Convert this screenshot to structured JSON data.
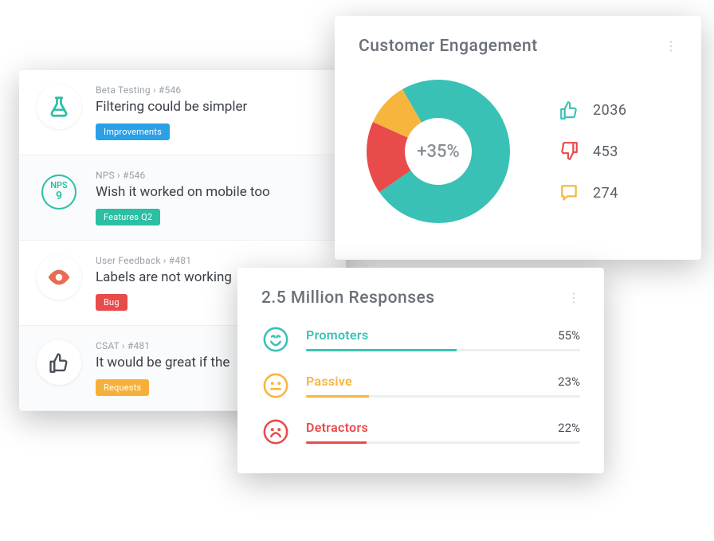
{
  "colors": {
    "teal": "#3ac1b5",
    "red": "#e94b4b",
    "yellow": "#f6b63e",
    "blue": "#2aa0e8",
    "orange": "#f5a623",
    "greenTag": "#2bbfa3",
    "grayText": "#6a7078"
  },
  "feedback": {
    "items": [
      {
        "crumb": "Beta Testing › #546",
        "title": "Filtering could be simpler",
        "tag": {
          "label": "Improvements",
          "bg": "#2aa0e8"
        },
        "icon": "flask",
        "iconColor": "#2bbfa3"
      },
      {
        "crumb": "NPS › #546",
        "title": "Wish it worked on mobile too",
        "tag": {
          "label": "Features Q2",
          "bg": "#2bbfa3"
        },
        "icon": "nps",
        "npsTop": "NPS",
        "npsVal": "9"
      },
      {
        "crumb": "User Feedback › #481",
        "title": "Labels are not working",
        "tag": {
          "label": "Bug",
          "bg": "#e94b4b"
        },
        "icon": "eye",
        "iconColor": "#ea6a52"
      },
      {
        "crumb": "CSAT › #481",
        "title": "It would be great if the",
        "tag": {
          "label": "Requests",
          "bg": "#f6b03a"
        },
        "icon": "thumb",
        "iconColor": "#4a4f56"
      }
    ]
  },
  "engagement": {
    "title": "Customer Engagement",
    "centerLabel": "+35%",
    "donut": {
      "segments": [
        {
          "name": "likes",
          "value": 2036,
          "color": "#3ac1b5"
        },
        {
          "name": "dislikes",
          "value": 453,
          "color": "#e94b4b"
        },
        {
          "name": "comments",
          "value": 274,
          "color": "#f6b63e"
        }
      ],
      "innerRadius": 42,
      "outerRadius": 90,
      "startAngle": -120
    },
    "stats": [
      {
        "icon": "thumb-up",
        "color": "#3ac1b5",
        "value": "2036"
      },
      {
        "icon": "thumb-down",
        "color": "#e94b4b",
        "value": "453"
      },
      {
        "icon": "comment",
        "color": "#f6b63e",
        "value": "274"
      }
    ]
  },
  "responses": {
    "title": "2.5 Million Responses",
    "rows": [
      {
        "label": "Promoters",
        "pct": 55,
        "pctLabel": "55%",
        "color": "#3ac1b5",
        "face": "love"
      },
      {
        "label": "Passive",
        "pct": 23,
        "pctLabel": "23%",
        "color": "#f6b63e",
        "face": "neutral"
      },
      {
        "label": "Detractors",
        "pct": 22,
        "pctLabel": "22%",
        "color": "#e94b4b",
        "face": "sad"
      }
    ]
  }
}
